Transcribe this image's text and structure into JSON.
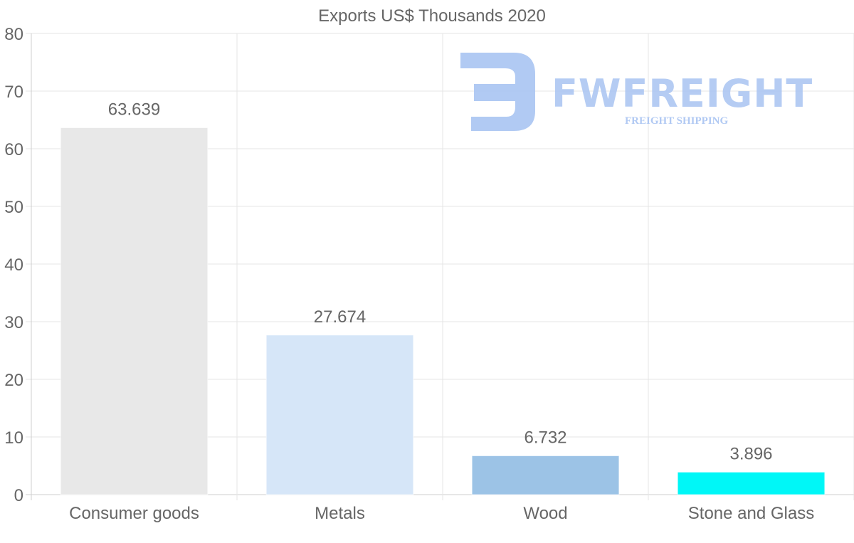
{
  "chart_data": {
    "type": "bar",
    "title": "Exports US$ Thousands 2020",
    "categories": [
      "Consumer goods",
      "Metals",
      "Wood",
      "Stone and Glass"
    ],
    "values": [
      63.639,
      27.674,
      6.732,
      3.896
    ],
    "value_labels": [
      "63.639",
      "27.674",
      "6.732",
      "3.896"
    ],
    "colors": [
      "#e8e8e8",
      "#d6e6f8",
      "#9cc3e6",
      "#00f7f7"
    ],
    "ylim": [
      0,
      80
    ],
    "yticks": [
      0,
      10,
      20,
      30,
      40,
      50,
      60,
      70,
      80
    ],
    "xlabel": "",
    "ylabel": "",
    "grid": true,
    "legend": "none"
  },
  "watermark": {
    "brand": "FWFREIGHT",
    "tagline": "FREIGHT SHIPPING",
    "color": "#a9c4f2"
  }
}
